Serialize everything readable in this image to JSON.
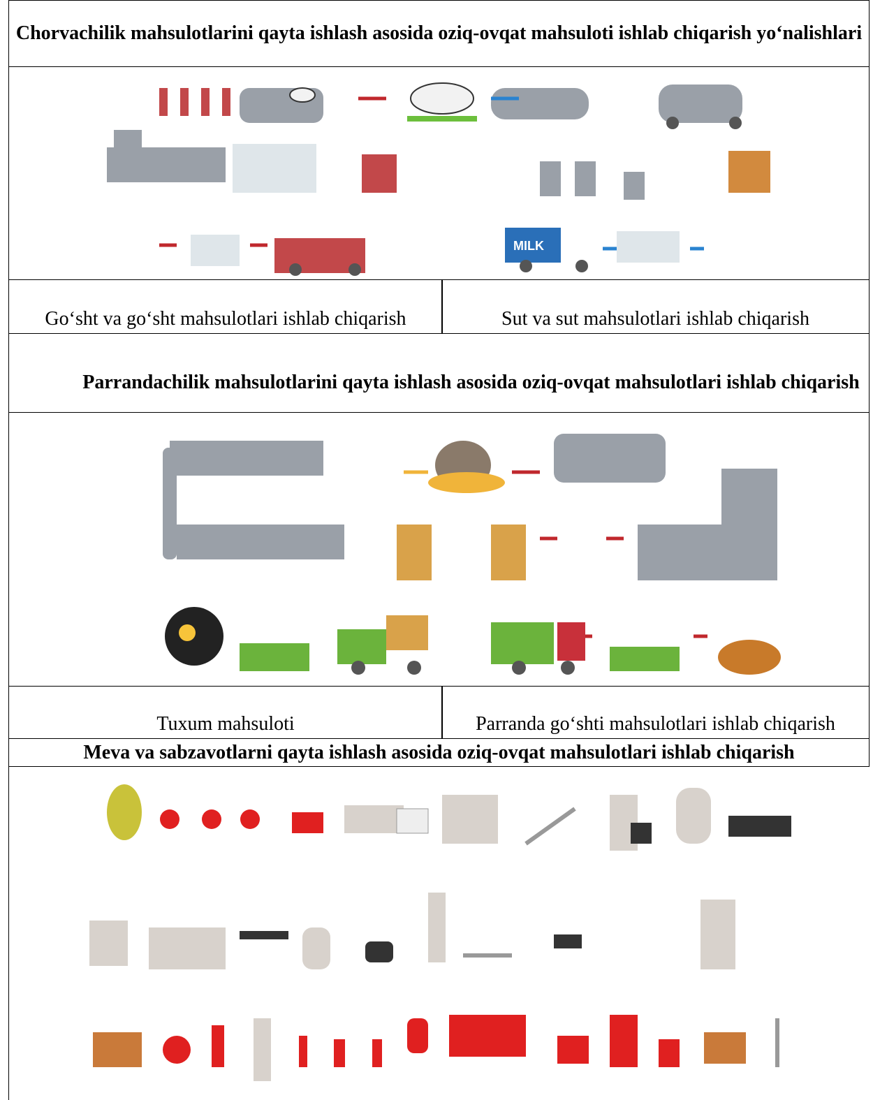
{
  "sections": [
    {
      "title": "Chorvachilik mahsulotlarini qayta ishlash asosida oziq-ovqat mahsuloti ishlab chiqarish yo‘nalishlari",
      "captions": [
        "Go‘sht va go‘sht mahsulotlari ishlab chiqarish",
        "Sut va sut mahsulotlari ishlab chiqarish"
      ]
    },
    {
      "title": "Parrandachilik mahsulotlarini qayta ishlash asosida oziq-ovqat mahsulotlari ishlab chiqarish",
      "captions": [
        "Tuxum mahsuloti",
        "Parranda go‘shti mahsulotlari ishlab chiqarish"
      ]
    },
    {
      "title": "Meva va sabzavotlarni qayta ishlash asosida oziq-ovqat mahsulotlari ishlab chiqarish"
    }
  ]
}
